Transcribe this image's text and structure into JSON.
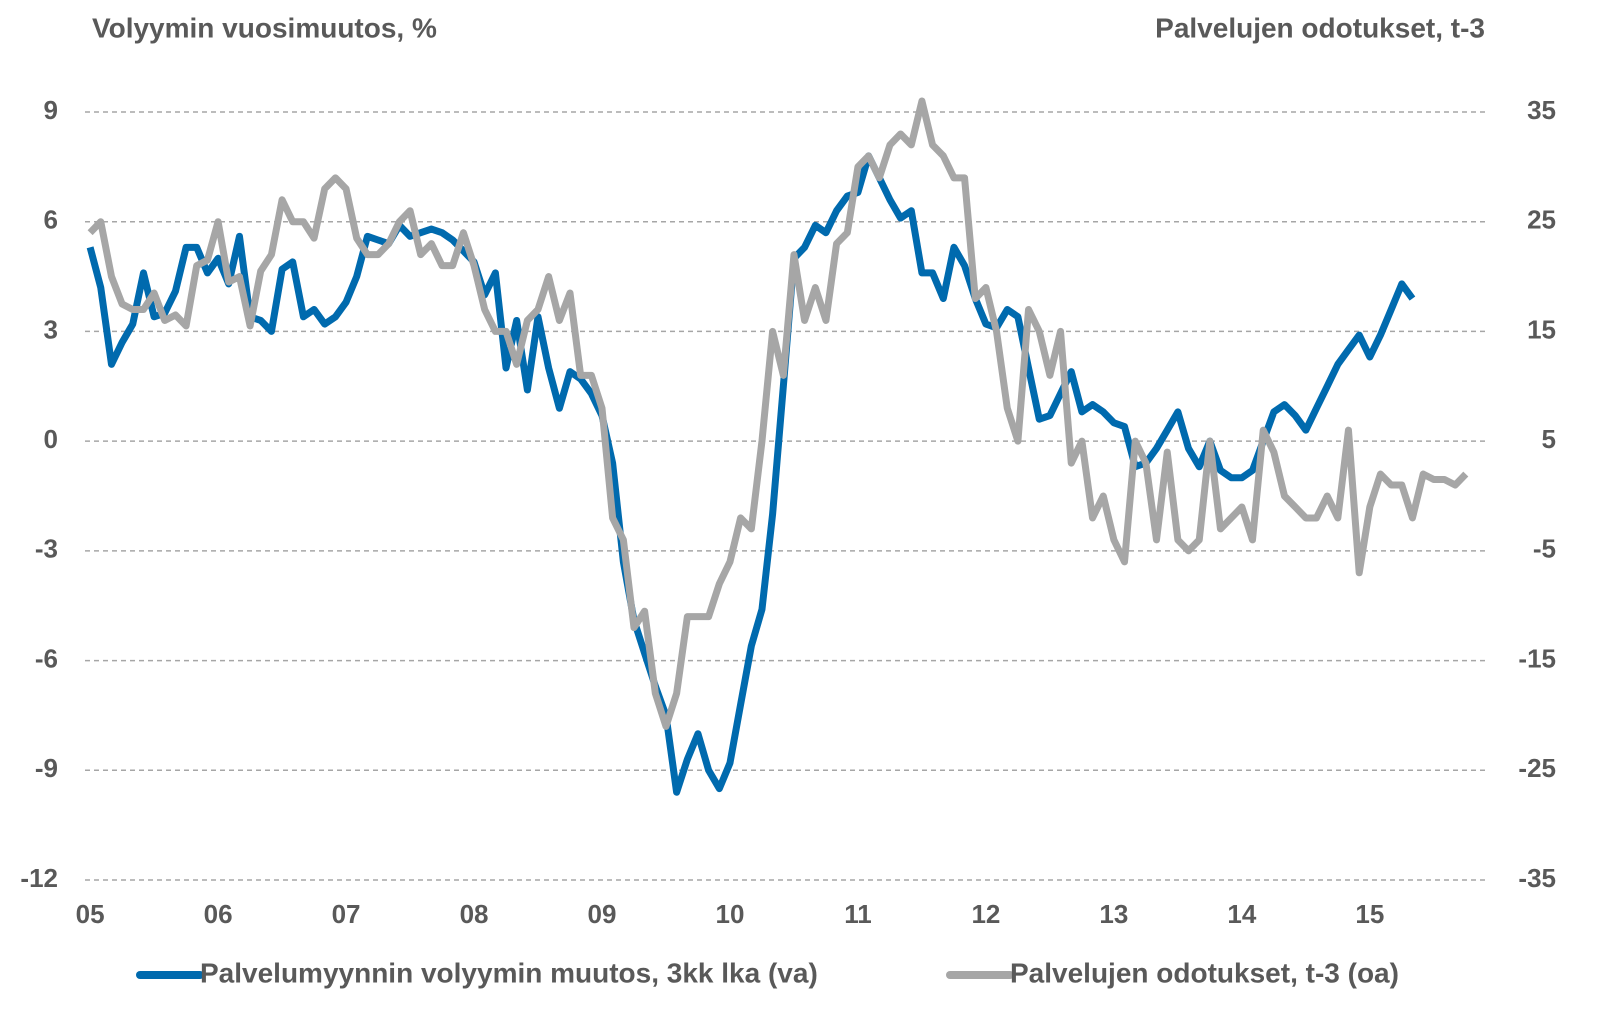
{
  "chart_data": {
    "type": "line",
    "ylabel": "Volyymin vuosimuutos, %",
    "y2label": "Palvelujen odotukset, t-3",
    "grid": true,
    "legend": "bottom",
    "xlim": [
      2004.96,
      2015.9
    ],
    "xticks": [
      {
        "value": 2005,
        "label": "05"
      },
      {
        "value": 2006,
        "label": "06"
      },
      {
        "value": 2007,
        "label": "07"
      },
      {
        "value": 2008,
        "label": "08"
      },
      {
        "value": 2009,
        "label": "09"
      },
      {
        "value": 2010,
        "label": "10"
      },
      {
        "value": 2011,
        "label": "11"
      },
      {
        "value": 2012,
        "label": "12"
      },
      {
        "value": 2013,
        "label": "13"
      },
      {
        "value": 2014,
        "label": "14"
      },
      {
        "value": 2015,
        "label": "15"
      }
    ],
    "ylim": [
      -12,
      9
    ],
    "yticks": [
      9,
      6,
      3,
      0,
      -3,
      -6,
      -9,
      -12
    ],
    "y2lim": [
      -35,
      35
    ],
    "y2ticks": [
      35,
      25,
      15,
      5,
      -5,
      -15,
      -25,
      -35
    ],
    "x": [
      2005.0,
      2005.083,
      2005.167,
      2005.25,
      2005.333,
      2005.417,
      2005.5,
      2005.583,
      2005.667,
      2005.75,
      2005.833,
      2005.917,
      2006.0,
      2006.083,
      2006.167,
      2006.25,
      2006.333,
      2006.417,
      2006.5,
      2006.583,
      2006.667,
      2006.75,
      2006.833,
      2006.917,
      2007.0,
      2007.083,
      2007.167,
      2007.25,
      2007.333,
      2007.417,
      2007.5,
      2007.583,
      2007.667,
      2007.75,
      2007.833,
      2007.917,
      2008.0,
      2008.083,
      2008.167,
      2008.25,
      2008.333,
      2008.417,
      2008.5,
      2008.583,
      2008.667,
      2008.75,
      2008.833,
      2008.917,
      2009.0,
      2009.083,
      2009.167,
      2009.25,
      2009.333,
      2009.417,
      2009.5,
      2009.583,
      2009.667,
      2009.75,
      2009.833,
      2009.917,
      2010.0,
      2010.083,
      2010.167,
      2010.25,
      2010.333,
      2010.417,
      2010.5,
      2010.583,
      2010.667,
      2010.75,
      2010.833,
      2010.917,
      2011.0,
      2011.083,
      2011.167,
      2011.25,
      2011.333,
      2011.417,
      2011.5,
      2011.583,
      2011.667,
      2011.75,
      2011.833,
      2011.917,
      2012.0,
      2012.083,
      2012.167,
      2012.25,
      2012.333,
      2012.417,
      2012.5,
      2012.583,
      2012.667,
      2012.75,
      2012.833,
      2012.917,
      2013.0,
      2013.083,
      2013.167,
      2013.25,
      2013.333,
      2013.417,
      2013.5,
      2013.583,
      2013.667,
      2013.75,
      2013.833,
      2013.917,
      2014.0,
      2014.083,
      2014.167,
      2014.25,
      2014.333,
      2014.417,
      2014.5,
      2014.583,
      2014.667,
      2014.75,
      2014.833,
      2014.917,
      2015.0,
      2015.083,
      2015.167,
      2015.25,
      2015.333,
      2015.417,
      2015.5,
      2015.583,
      2015.667,
      2015.75
    ],
    "series": [
      {
        "name": "Palvelumyynnin volyymin muutos, 3kk lka (va)",
        "color": "#006aae",
        "axis": "y",
        "values": [
          5.3,
          4.2,
          2.1,
          2.7,
          3.2,
          4.6,
          3.4,
          3.5,
          4.1,
          5.3,
          5.3,
          4.6,
          5.0,
          4.3,
          5.6,
          3.4,
          3.3,
          3.0,
          4.7,
          4.9,
          3.4,
          3.6,
          3.2,
          3.4,
          3.8,
          4.5,
          5.6,
          5.5,
          5.4,
          5.9,
          5.6,
          5.7,
          5.8,
          5.7,
          5.5,
          5.2,
          4.9,
          4.0,
          4.6,
          2.0,
          3.3,
          1.4,
          3.4,
          2.0,
          0.9,
          1.9,
          1.7,
          1.3,
          0.7,
          -0.6,
          -3.3,
          -4.9,
          -5.8,
          -6.7,
          -7.5,
          -9.6,
          -8.7,
          -8.0,
          -9.0,
          -9.5,
          -8.8,
          -7.2,
          -5.6,
          -4.6,
          -2.0,
          1.5,
          5.0,
          5.3,
          5.9,
          5.7,
          6.3,
          6.7,
          6.8,
          7.8,
          7.2,
          6.6,
          6.1,
          6.3,
          4.6,
          4.6,
          3.9,
          5.3,
          4.8,
          3.9,
          3.2,
          3.1,
          3.6,
          3.4,
          2.0,
          0.6,
          0.7,
          1.3,
          1.9,
          0.8,
          1.0,
          0.8,
          0.5,
          0.4,
          -0.7,
          -0.6,
          -0.2,
          0.3,
          0.8,
          -0.2,
          -0.7,
          0.0,
          -0.8,
          -1.0,
          -1.0,
          -0.8,
          0.0,
          0.8,
          1.0,
          0.7,
          0.3,
          0.9,
          1.5,
          2.1,
          2.5,
          2.9,
          2.3,
          2.9,
          3.6,
          4.3,
          3.9,
          null,
          null,
          null,
          null,
          null
        ]
      },
      {
        "name": "Palvelujen odotukset, t-3 (oa)",
        "color": "#a6a6a6",
        "axis": "y2",
        "values": [
          24,
          25,
          20,
          17.5,
          17,
          17,
          18.5,
          16,
          16.5,
          15.5,
          21,
          21.5,
          25,
          19.5,
          20,
          15.5,
          20.5,
          22,
          27,
          25,
          25,
          23.5,
          28,
          29,
          28,
          23.5,
          22,
          22,
          23,
          25,
          26,
          22,
          23,
          21,
          21,
          24,
          21,
          17,
          15,
          15,
          12,
          16,
          17,
          20,
          16,
          18.5,
          11,
          11,
          8,
          -2,
          -4,
          -12,
          -10.5,
          -18,
          -21,
          -18,
          -11,
          -11,
          -11,
          -8,
          -6,
          -2,
          -3,
          5,
          15,
          11,
          22,
          16,
          19,
          16,
          23,
          24,
          30,
          31,
          29,
          32,
          33,
          32,
          36,
          32,
          31,
          29,
          29,
          18,
          19,
          15,
          8,
          5,
          17,
          15,
          11,
          15,
          3,
          5,
          -2,
          0,
          -4,
          -6,
          5,
          3,
          -4,
          4,
          -4,
          -5,
          -4,
          5,
          -3,
          -2,
          -1,
          -4,
          6,
          4,
          0,
          -1,
          -2,
          -2,
          0,
          -2,
          6,
          -7,
          -1,
          2,
          1,
          1,
          -2,
          2,
          1.5,
          1.5,
          1,
          2
        ]
      }
    ]
  }
}
